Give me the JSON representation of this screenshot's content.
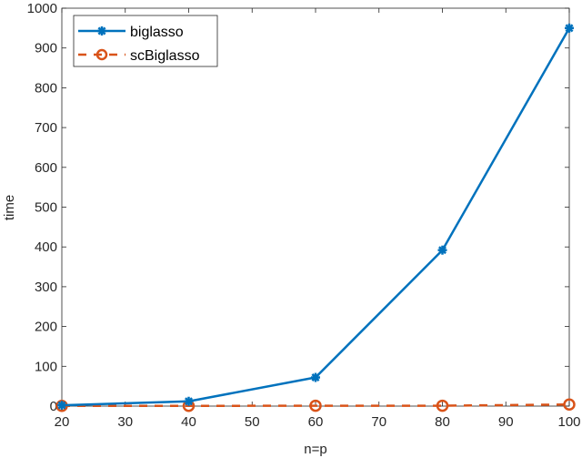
{
  "chart_data": {
    "type": "line",
    "title": "",
    "xlabel": "n=p",
    "ylabel": "time",
    "x": [
      20,
      40,
      60,
      80,
      100
    ],
    "xlim": [
      20,
      100
    ],
    "ylim": [
      0,
      1000
    ],
    "xticks": [
      20,
      30,
      40,
      50,
      60,
      70,
      80,
      90,
      100
    ],
    "yticks": [
      0,
      100,
      200,
      300,
      400,
      500,
      600,
      700,
      800,
      900,
      1000
    ],
    "grid": false,
    "legend_position": "upper left",
    "series": [
      {
        "name": "biglasso",
        "values": [
          2,
          12,
          72,
          392,
          950
        ],
        "color": "#0072BD",
        "line_style": "solid",
        "marker": "asterisk"
      },
      {
        "name": "scBiglasso",
        "values": [
          0.5,
          0.5,
          1,
          1,
          4
        ],
        "color": "#D95319",
        "line_style": "dashed",
        "marker": "circle"
      }
    ]
  }
}
